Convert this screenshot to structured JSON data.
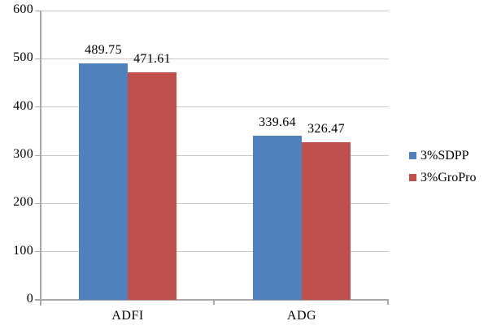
{
  "chart_data": {
    "type": "bar",
    "title": "",
    "xlabel": "",
    "ylabel": "",
    "categories": [
      "ADFI",
      "ADG"
    ],
    "series": [
      {
        "name": "3%SDPP",
        "color": "#4F81BD",
        "values": [
          489.75,
          339.64
        ]
      },
      {
        "name": "3%GroPro",
        "color": "#C0504D",
        "values": [
          471.61,
          326.47
        ]
      }
    ],
    "value_labels": [
      [
        "489.75",
        "339.64"
      ],
      [
        "471.61",
        "326.47"
      ]
    ],
    "ylim": [
      0,
      600
    ],
    "yticks": [
      0,
      100,
      200,
      300,
      400,
      500,
      600
    ],
    "grid": "horizontal",
    "legend_position": "right",
    "colors": {
      "background": "#FFFFFF",
      "gridline": "#C8C8C8",
      "axis": "#A8A8A8",
      "text": "#000000"
    }
  }
}
